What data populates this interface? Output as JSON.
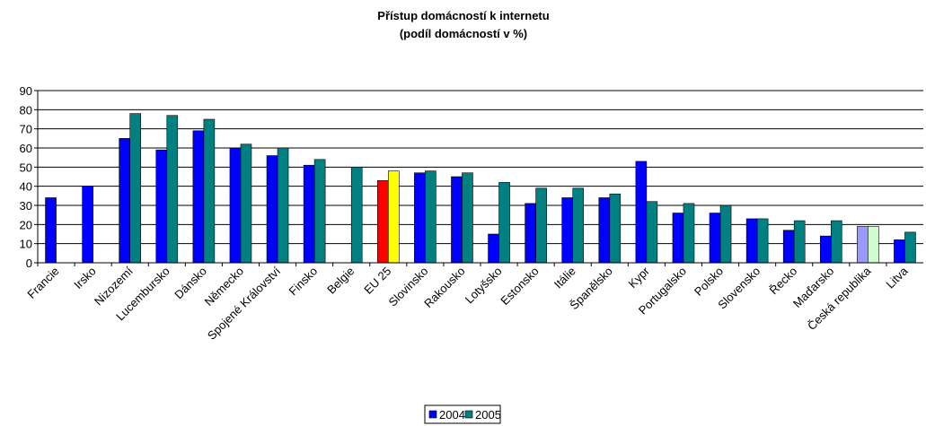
{
  "chart_data": {
    "type": "bar",
    "title": "Přístup domácností k internetu",
    "subtitle": "(podíl domácností v %)",
    "categories": [
      "Francie",
      "Irsko",
      "Nizozemí",
      "Lucembursko",
      "Dánsko",
      "Německo",
      "Spojené Království",
      "Finsko",
      "Belgie",
      "EU 25",
      "Slovinsko",
      "Rakousko",
      "Lotyšsko",
      "Estonsko",
      "Itálie",
      "Španělsko",
      "Kypr",
      "Portugalsko",
      "Polsko",
      "Slovensko",
      "Řecko",
      "Maďarsko",
      "Česká republika",
      "Litva"
    ],
    "series": [
      {
        "name": "2004",
        "color": "#0000ff",
        "colors": [
          "#0000ff",
          "#0000ff",
          "#0000ff",
          "#0000ff",
          "#0000ff",
          "#0000ff",
          "#0000ff",
          "#0000ff",
          "#0000ff",
          "#ff0000",
          "#0000ff",
          "#0000ff",
          "#0000ff",
          "#0000ff",
          "#0000ff",
          "#0000ff",
          "#0000ff",
          "#0000ff",
          "#0000ff",
          "#0000ff",
          "#0000ff",
          "#0000ff",
          "#9999ff",
          "#0000ff"
        ],
        "values": [
          34,
          40,
          65,
          59,
          69,
          60,
          56,
          51,
          null,
          43,
          47,
          45,
          15,
          31,
          34,
          34,
          53,
          26,
          26,
          23,
          17,
          14,
          19,
          12
        ]
      },
      {
        "name": "2005",
        "color": "#008080",
        "colors": [
          "#008080",
          "#008080",
          "#008080",
          "#008080",
          "#008080",
          "#008080",
          "#008080",
          "#008080",
          "#008080",
          "#ffff00",
          "#008080",
          "#008080",
          "#008080",
          "#008080",
          "#008080",
          "#008080",
          "#008080",
          "#008080",
          "#008080",
          "#008080",
          "#008080",
          "#008080",
          "#ccffcc",
          "#008080"
        ],
        "values": [
          null,
          null,
          78,
          77,
          75,
          62,
          60,
          54,
          50,
          48,
          48,
          47,
          42,
          39,
          39,
          36,
          32,
          31,
          30,
          23,
          22,
          22,
          19,
          16
        ]
      }
    ],
    "ylim": [
      0,
      90
    ],
    "yticks": [
      0,
      10,
      20,
      30,
      40,
      50,
      60,
      70,
      80,
      90
    ],
    "grid": true,
    "legend": "bottom"
  }
}
